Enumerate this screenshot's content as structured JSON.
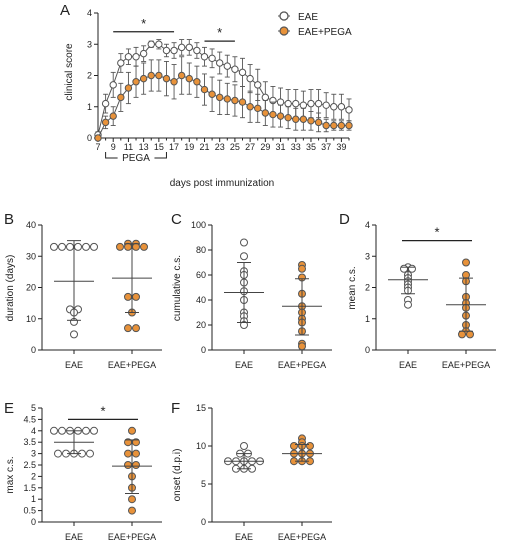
{
  "figure": {
    "legend": {
      "eae_label": "EAE",
      "pega_label": "EAE+PEGA"
    },
    "colors": {
      "eae_fill": "#ffffff",
      "eae_stroke": "#555555",
      "pega_fill": "#e8923a",
      "pega_stroke": "#555555",
      "axis": "#222222",
      "errbar": "#555555"
    }
  },
  "chart_data": [
    {
      "panel": "A",
      "type": "line",
      "xlabel": "days post immunization",
      "ylabel": "clinical score",
      "xlim": [
        7,
        40
      ],
      "ylim": [
        0,
        4
      ],
      "xticks": [
        7,
        9,
        11,
        13,
        15,
        17,
        19,
        21,
        23,
        25,
        27,
        29,
        31,
        33,
        35,
        37,
        39
      ],
      "yticks": [
        0,
        1,
        2,
        3,
        4
      ],
      "legend_position": "top-right",
      "treatment_label": "PEGA",
      "treatment_range": [
        8,
        16
      ],
      "significance": [
        {
          "label": "*",
          "x_range": [
            9,
            17
          ],
          "y": 3.4
        },
        {
          "label": "*",
          "x_range": [
            21,
            25
          ],
          "y": 3.1
        }
      ],
      "x": [
        7,
        8,
        9,
        10,
        11,
        12,
        13,
        14,
        15,
        16,
        17,
        18,
        19,
        20,
        21,
        22,
        23,
        24,
        25,
        26,
        27,
        28,
        29,
        30,
        31,
        32,
        33,
        34,
        35,
        36,
        37,
        38,
        39,
        40
      ],
      "series": [
        {
          "name": "EAE",
          "marker": "open",
          "values": [
            0.1,
            1.1,
            1.7,
            2.4,
            2.6,
            2.6,
            2.7,
            3.0,
            3.0,
            2.8,
            2.8,
            2.9,
            2.9,
            2.8,
            2.6,
            2.55,
            2.4,
            2.3,
            2.2,
            2.1,
            1.9,
            1.7,
            1.3,
            1.2,
            1.15,
            1.1,
            1.1,
            1.05,
            1.1,
            1.1,
            1.05,
            1.0,
            1.0,
            0.9
          ],
          "errors": [
            0.1,
            0.3,
            0.4,
            0.3,
            0.25,
            0.3,
            0.25,
            0.1,
            0.15,
            0.2,
            0.25,
            0.25,
            0.25,
            0.25,
            0.3,
            0.3,
            0.35,
            0.35,
            0.4,
            0.45,
            0.45,
            0.5,
            0.5,
            0.45,
            0.45,
            0.45,
            0.45,
            0.45,
            0.45,
            0.45,
            0.4,
            0.4,
            0.4,
            0.35
          ]
        },
        {
          "name": "EAE+PEGA",
          "marker": "filled",
          "values": [
            0.0,
            0.5,
            0.7,
            1.3,
            1.6,
            1.8,
            1.9,
            2.0,
            2.0,
            1.9,
            1.8,
            2.0,
            1.9,
            1.8,
            1.55,
            1.4,
            1.3,
            1.25,
            1.2,
            1.15,
            1.0,
            0.95,
            0.8,
            0.75,
            0.7,
            0.65,
            0.6,
            0.6,
            0.55,
            0.5,
            0.4,
            0.4,
            0.4,
            0.4
          ],
          "errors": [
            0.05,
            0.2,
            0.3,
            0.45,
            0.5,
            0.5,
            0.5,
            0.5,
            0.5,
            0.55,
            0.55,
            0.6,
            0.5,
            0.5,
            0.5,
            0.55,
            0.55,
            0.5,
            0.5,
            0.5,
            0.5,
            0.45,
            0.4,
            0.4,
            0.35,
            0.35,
            0.35,
            0.35,
            0.3,
            0.3,
            0.2,
            0.15,
            0.15,
            0.15
          ]
        }
      ]
    },
    {
      "panel": "B",
      "type": "scatter",
      "ylabel": "duration (days)",
      "categories": [
        "EAE",
        "EAE+PEGA"
      ],
      "ylim": [
        0,
        40
      ],
      "yticks": [
        0,
        10,
        20,
        30,
        40
      ],
      "groups": [
        {
          "name": "EAE",
          "points": [
            33,
            33,
            33,
            33,
            33,
            33,
            13,
            13,
            12,
            9,
            5
          ],
          "mean": 22,
          "sd_low": 9.5,
          "sd_high": 35
        },
        {
          "name": "EAE+PEGA",
          "points": [
            34,
            34,
            33,
            33,
            33,
            33,
            17,
            17,
            12,
            7,
            7
          ],
          "mean": 23,
          "sd_low": 12,
          "sd_high": 34
        }
      ]
    },
    {
      "panel": "C",
      "type": "scatter",
      "ylabel": "cumulative c.s.",
      "categories": [
        "EAE",
        "EAE+PEGA"
      ],
      "ylim": [
        0,
        100
      ],
      "yticks": [
        0,
        20,
        40,
        60,
        80,
        100
      ],
      "groups": [
        {
          "name": "EAE",
          "points": [
            86,
            75,
            63,
            60,
            54,
            47,
            40,
            30,
            27,
            23,
            20
          ],
          "mean": 46,
          "sd_low": 22,
          "sd_high": 70
        },
        {
          "name": "EAE+PEGA",
          "points": [
            68,
            65,
            58,
            45,
            35,
            30,
            25,
            22,
            15,
            5,
            3
          ],
          "mean": 35,
          "sd_low": 12,
          "sd_high": 57
        }
      ]
    },
    {
      "panel": "D",
      "type": "scatter",
      "ylabel": "mean c.s.",
      "categories": [
        "EAE",
        "EAE+PEGA"
      ],
      "ylim": [
        0,
        4
      ],
      "yticks": [
        0,
        1,
        2,
        3,
        4
      ],
      "significance": [
        {
          "label": "*",
          "between": [
            "EAE",
            "EAE+PEGA"
          ],
          "y": 3.5
        }
      ],
      "groups": [
        {
          "name": "EAE",
          "points": [
            2.65,
            2.6,
            2.6,
            2.4,
            2.3,
            2.2,
            2.1,
            2.0,
            1.9,
            1.6,
            1.45
          ],
          "mean": 2.25,
          "sd_low": 1.8,
          "sd_high": 2.65
        },
        {
          "name": "EAE+PEGA",
          "points": [
            2.8,
            2.4,
            2.2,
            1.7,
            1.5,
            1.35,
            1.1,
            0.8,
            0.6,
            0.5,
            0.5
          ],
          "mean": 1.45,
          "sd_low": 0.6,
          "sd_high": 2.3
        }
      ]
    },
    {
      "panel": "E",
      "type": "scatter",
      "ylabel": "max c.s.",
      "categories": [
        "EAE",
        "EAE+PEGA"
      ],
      "ylim": [
        0,
        5
      ],
      "yticks": [
        0,
        0.5,
        1,
        1.5,
        2,
        2.5,
        3,
        3.5,
        4,
        4.5,
        5
      ],
      "significance": [
        {
          "label": "*",
          "between": [
            "EAE",
            "EAE+PEGA"
          ],
          "y": 4.5
        }
      ],
      "groups": [
        {
          "name": "EAE",
          "points": [
            4,
            4,
            4,
            4,
            4,
            4,
            3,
            3,
            3,
            3,
            3
          ],
          "mean": 3.5,
          "sd_low": 3.0,
          "sd_high": 4.0
        },
        {
          "name": "EAE+PEGA",
          "points": [
            4,
            3.5,
            3.5,
            3,
            3,
            2.5,
            2.5,
            2,
            1.5,
            1,
            0.5
          ],
          "mean": 2.45,
          "sd_low": 1.25,
          "sd_high": 3.6
        }
      ]
    },
    {
      "panel": "F",
      "type": "scatter",
      "ylabel": "onset (d.p.i)",
      "categories": [
        "EAE",
        "EAE+PEGA"
      ],
      "ylim": [
        0,
        15
      ],
      "yticks": [
        0,
        5,
        10,
        15
      ],
      "groups": [
        {
          "name": "EAE",
          "points": [
            10,
            9,
            9,
            8,
            8,
            8,
            8,
            8,
            7,
            7,
            7
          ],
          "mean": 8,
          "sd_low": 7,
          "sd_high": 9
        },
        {
          "name": "EAE+PEGA",
          "points": [
            11,
            10.5,
            10,
            10,
            10,
            9,
            9,
            9,
            8,
            8,
            8
          ],
          "mean": 9,
          "sd_low": 8,
          "sd_high": 10.2
        }
      ]
    }
  ]
}
